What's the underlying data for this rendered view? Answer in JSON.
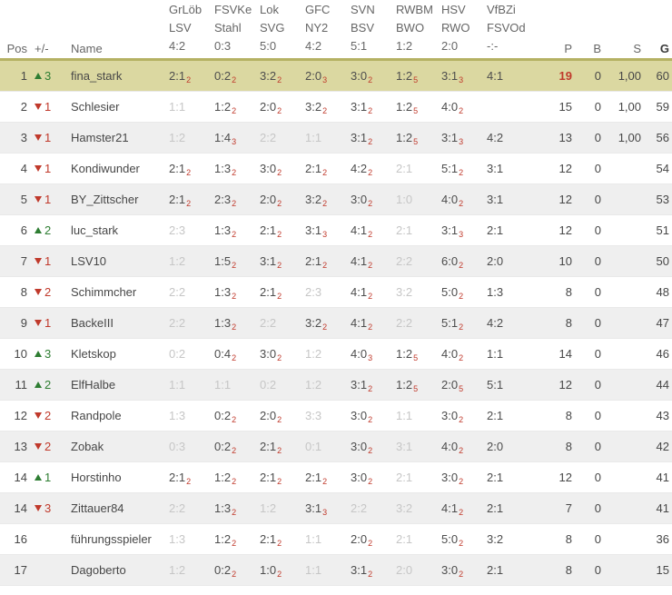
{
  "table": {
    "header": {
      "pos": "Pos",
      "trend": "+/-",
      "name": "Name",
      "p": "P",
      "b": "B",
      "s": "S",
      "g": "G"
    },
    "matches": [
      {
        "home": "GrLöb",
        "away": "LSV",
        "result": "4:2"
      },
      {
        "home": "FSVKe",
        "away": "Stahl",
        "result": "0:3"
      },
      {
        "home": "Lok",
        "away": "SVG",
        "result": "5:0"
      },
      {
        "home": "GFC",
        "away": "NY2",
        "result": "4:2"
      },
      {
        "home": "SVN",
        "away": "BSV",
        "result": "5:1"
      },
      {
        "home": "RWBM",
        "away": "BWO",
        "result": "1:2"
      },
      {
        "home": "HSV",
        "away": "RWO",
        "result": "2:0"
      },
      {
        "home": "VfBZi",
        "away": "FSVOd",
        "result": "-:-"
      }
    ],
    "rows": [
      {
        "pos": "1",
        "trend": "up",
        "trend_value": "3",
        "name": "fina_stark",
        "highlight": true,
        "p_highlight": true,
        "tips": [
          {
            "s": "2:1",
            "p": "2"
          },
          {
            "s": "0:2",
            "p": "2"
          },
          {
            "s": "3:2",
            "p": "2"
          },
          {
            "s": "2:0",
            "p": "3"
          },
          {
            "s": "3:0",
            "p": "2"
          },
          {
            "s": "1:2",
            "p": "5"
          },
          {
            "s": "3:1",
            "p": "3"
          },
          {
            "s": "4:1"
          }
        ],
        "p": "19",
        "b": "0",
        "srate": "1,00",
        "g": "60"
      },
      {
        "pos": "2",
        "trend": "down",
        "trend_value": "1",
        "name": "Schlesier",
        "tips": [
          {
            "s": "1:1",
            "m": true
          },
          {
            "s": "1:2",
            "p": "2"
          },
          {
            "s": "2:0",
            "p": "2"
          },
          {
            "s": "3:2",
            "p": "2"
          },
          {
            "s": "3:1",
            "p": "2"
          },
          {
            "s": "1:2",
            "p": "5"
          },
          {
            "s": "4:0",
            "p": "2"
          },
          null
        ],
        "p": "15",
        "b": "0",
        "srate": "1,00",
        "g": "59"
      },
      {
        "pos": "3",
        "trend": "down",
        "trend_value": "1",
        "name": "Hamster21",
        "tips": [
          {
            "s": "1:2",
            "m": true
          },
          {
            "s": "1:4",
            "p": "3"
          },
          {
            "s": "2:2",
            "m": true
          },
          {
            "s": "1:1",
            "m": true
          },
          {
            "s": "3:1",
            "p": "2"
          },
          {
            "s": "1:2",
            "p": "5"
          },
          {
            "s": "3:1",
            "p": "3"
          },
          {
            "s": "4:2"
          }
        ],
        "p": "13",
        "b": "0",
        "srate": "1,00",
        "g": "56"
      },
      {
        "pos": "4",
        "trend": "down",
        "trend_value": "1",
        "name": "Kondiwunder",
        "tips": [
          {
            "s": "2:1",
            "p": "2"
          },
          {
            "s": "1:3",
            "p": "2"
          },
          {
            "s": "3:0",
            "p": "2"
          },
          {
            "s": "2:1",
            "p": "2"
          },
          {
            "s": "4:2",
            "p": "2"
          },
          {
            "s": "2:1",
            "m": true
          },
          {
            "s": "5:1",
            "p": "2"
          },
          {
            "s": "3:1"
          }
        ],
        "p": "12",
        "b": "0",
        "srate": "",
        "g": "54"
      },
      {
        "pos": "5",
        "trend": "down",
        "trend_value": "1",
        "name": "BY_Zittscher",
        "tips": [
          {
            "s": "2:1",
            "p": "2"
          },
          {
            "s": "2:3",
            "p": "2"
          },
          {
            "s": "2:0",
            "p": "2"
          },
          {
            "s": "3:2",
            "p": "2"
          },
          {
            "s": "3:0",
            "p": "2"
          },
          {
            "s": "1:0",
            "m": true
          },
          {
            "s": "4:0",
            "p": "2"
          },
          {
            "s": "3:1"
          }
        ],
        "p": "12",
        "b": "0",
        "srate": "",
        "g": "53"
      },
      {
        "pos": "6",
        "trend": "up",
        "trend_value": "2",
        "name": "luc_stark",
        "tips": [
          {
            "s": "2:3",
            "m": true
          },
          {
            "s": "1:3",
            "p": "2"
          },
          {
            "s": "2:1",
            "p": "2"
          },
          {
            "s": "3:1",
            "p": "3"
          },
          {
            "s": "4:1",
            "p": "2"
          },
          {
            "s": "2:1",
            "m": true
          },
          {
            "s": "3:1",
            "p": "3"
          },
          {
            "s": "2:1"
          }
        ],
        "p": "12",
        "b": "0",
        "srate": "",
        "g": "51"
      },
      {
        "pos": "7",
        "trend": "down",
        "trend_value": "1",
        "name": "LSV10",
        "tips": [
          {
            "s": "1:2",
            "m": true
          },
          {
            "s": "1:5",
            "p": "2"
          },
          {
            "s": "3:1",
            "p": "2"
          },
          {
            "s": "2:1",
            "p": "2"
          },
          {
            "s": "4:1",
            "p": "2"
          },
          {
            "s": "2:2",
            "m": true
          },
          {
            "s": "6:0",
            "p": "2"
          },
          {
            "s": "2:0"
          }
        ],
        "p": "10",
        "b": "0",
        "srate": "",
        "g": "50"
      },
      {
        "pos": "8",
        "trend": "down",
        "trend_value": "2",
        "name": "Schimmcher",
        "tips": [
          {
            "s": "2:2",
            "m": true
          },
          {
            "s": "1:3",
            "p": "2"
          },
          {
            "s": "2:1",
            "p": "2"
          },
          {
            "s": "2:3",
            "m": true
          },
          {
            "s": "4:1",
            "p": "2"
          },
          {
            "s": "3:2",
            "m": true
          },
          {
            "s": "5:0",
            "p": "2"
          },
          {
            "s": "1:3"
          }
        ],
        "p": "8",
        "b": "0",
        "srate": "",
        "g": "48"
      },
      {
        "pos": "9",
        "trend": "down",
        "trend_value": "1",
        "name": "BackeIII",
        "tips": [
          {
            "s": "2:2",
            "m": true
          },
          {
            "s": "1:3",
            "p": "2"
          },
          {
            "s": "2:2",
            "m": true
          },
          {
            "s": "3:2",
            "p": "2"
          },
          {
            "s": "4:1",
            "p": "2"
          },
          {
            "s": "2:2",
            "m": true
          },
          {
            "s": "5:1",
            "p": "2"
          },
          {
            "s": "4:2"
          }
        ],
        "p": "8",
        "b": "0",
        "srate": "",
        "g": "47"
      },
      {
        "pos": "10",
        "trend": "up",
        "trend_value": "3",
        "name": "Kletskop",
        "tips": [
          {
            "s": "0:2",
            "m": true
          },
          {
            "s": "0:4",
            "p": "2"
          },
          {
            "s": "3:0",
            "p": "2"
          },
          {
            "s": "1:2",
            "m": true
          },
          {
            "s": "4:0",
            "p": "3"
          },
          {
            "s": "1:2",
            "p": "5"
          },
          {
            "s": "4:0",
            "p": "2"
          },
          {
            "s": "1:1"
          }
        ],
        "p": "14",
        "b": "0",
        "srate": "",
        "g": "46"
      },
      {
        "pos": "11",
        "trend": "up",
        "trend_value": "2",
        "name": "ElfHalbe",
        "tips": [
          {
            "s": "1:1",
            "m": true
          },
          {
            "s": "1:1",
            "m": true
          },
          {
            "s": "0:2",
            "m": true
          },
          {
            "s": "1:2",
            "m": true
          },
          {
            "s": "3:1",
            "p": "2"
          },
          {
            "s": "1:2",
            "p": "5"
          },
          {
            "s": "2:0",
            "p": "5"
          },
          {
            "s": "5:1"
          }
        ],
        "p": "12",
        "b": "0",
        "srate": "",
        "g": "44"
      },
      {
        "pos": "12",
        "trend": "down",
        "trend_value": "2",
        "name": "Randpole",
        "tips": [
          {
            "s": "1:3",
            "m": true
          },
          {
            "s": "0:2",
            "p": "2"
          },
          {
            "s": "2:0",
            "p": "2"
          },
          {
            "s": "3:3",
            "m": true
          },
          {
            "s": "3:0",
            "p": "2"
          },
          {
            "s": "1:1",
            "m": true
          },
          {
            "s": "3:0",
            "p": "2"
          },
          {
            "s": "2:1"
          }
        ],
        "p": "8",
        "b": "0",
        "srate": "",
        "g": "43"
      },
      {
        "pos": "13",
        "trend": "down",
        "trend_value": "2",
        "name": "Zobak",
        "tips": [
          {
            "s": "0:3",
            "m": true
          },
          {
            "s": "0:2",
            "p": "2"
          },
          {
            "s": "2:1",
            "p": "2"
          },
          {
            "s": "0:1",
            "m": true
          },
          {
            "s": "3:0",
            "p": "2"
          },
          {
            "s": "3:1",
            "m": true
          },
          {
            "s": "4:0",
            "p": "2"
          },
          {
            "s": "2:0"
          }
        ],
        "p": "8",
        "b": "0",
        "srate": "",
        "g": "42"
      },
      {
        "pos": "14",
        "trend": "up",
        "trend_value": "1",
        "name": "Horstinho",
        "tips": [
          {
            "s": "2:1",
            "p": "2"
          },
          {
            "s": "1:2",
            "p": "2"
          },
          {
            "s": "2:1",
            "p": "2"
          },
          {
            "s": "2:1",
            "p": "2"
          },
          {
            "s": "3:0",
            "p": "2"
          },
          {
            "s": "2:1",
            "m": true
          },
          {
            "s": "3:0",
            "p": "2"
          },
          {
            "s": "2:1"
          }
        ],
        "p": "12",
        "b": "0",
        "srate": "",
        "g": "41"
      },
      {
        "pos": "14",
        "trend": "down",
        "trend_value": "3",
        "name": "Zittauer84",
        "tips": [
          {
            "s": "2:2",
            "m": true
          },
          {
            "s": "1:3",
            "p": "2"
          },
          {
            "s": "1:2",
            "m": true
          },
          {
            "s": "3:1",
            "p": "3"
          },
          {
            "s": "2:2",
            "m": true
          },
          {
            "s": "3:2",
            "m": true
          },
          {
            "s": "4:1",
            "p": "2"
          },
          {
            "s": "2:1"
          }
        ],
        "p": "7",
        "b": "0",
        "srate": "",
        "g": "41"
      },
      {
        "pos": "16",
        "trend": null,
        "trend_value": "",
        "name": "führungsspieler",
        "tips": [
          {
            "s": "1:3",
            "m": true
          },
          {
            "s": "1:2",
            "p": "2"
          },
          {
            "s": "2:1",
            "p": "2"
          },
          {
            "s": "1:1",
            "m": true
          },
          {
            "s": "2:0",
            "p": "2"
          },
          {
            "s": "2:1",
            "m": true
          },
          {
            "s": "5:0",
            "p": "2"
          },
          {
            "s": "3:2"
          }
        ],
        "p": "8",
        "b": "0",
        "srate": "",
        "g": "36"
      },
      {
        "pos": "17",
        "trend": null,
        "trend_value": "",
        "name": "Dagoberto",
        "tips": [
          {
            "s": "1:2",
            "m": true
          },
          {
            "s": "0:2",
            "p": "2"
          },
          {
            "s": "1:0",
            "p": "2"
          },
          {
            "s": "1:1",
            "m": true
          },
          {
            "s": "3:1",
            "p": "2"
          },
          {
            "s": "2:0",
            "m": true
          },
          {
            "s": "3:0",
            "p": "2"
          },
          {
            "s": "2:1"
          }
        ],
        "p": "8",
        "b": "0",
        "srate": "",
        "g": "15"
      }
    ]
  },
  "colors": {
    "accent-red": "#c0392b",
    "green": "#2e7d32",
    "hl-bg": "#dbd8a1",
    "rule": "#b5b163",
    "alt-bg": "#efefef",
    "muted": "#c6c6c6"
  }
}
